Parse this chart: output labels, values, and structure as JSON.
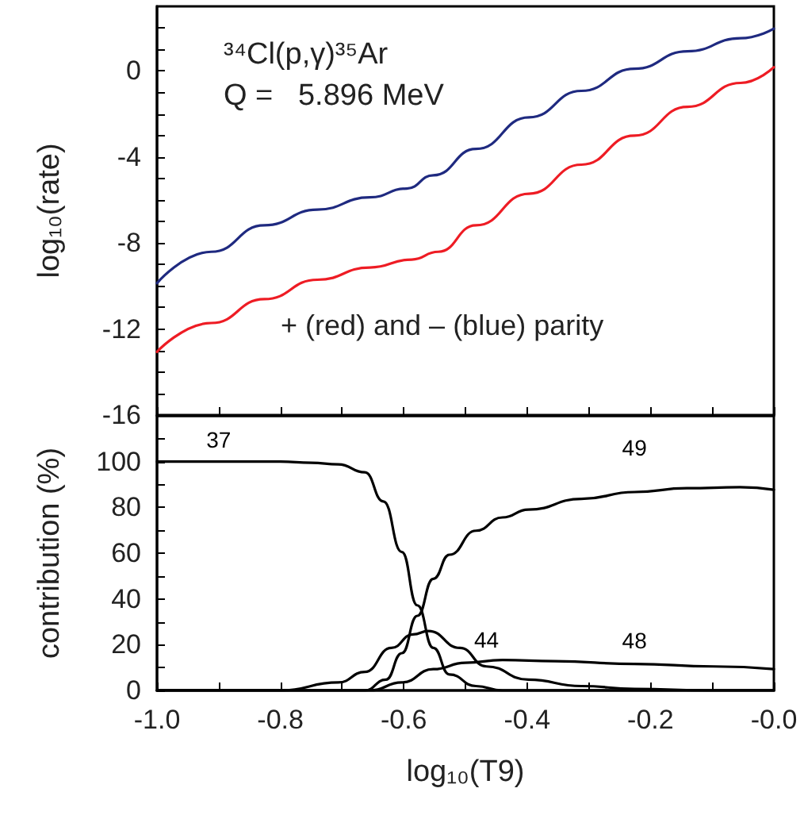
{
  "chart_data": [
    {
      "type": "line",
      "title": "³⁴Cl(p,γ)³⁵Ar",
      "subtitle": "Q =   5.896 MeV",
      "ylabel": "log₁₀(rate)",
      "annotations": [
        "+ (red) and – (blue) parity"
      ],
      "xlim": [
        -1,
        0
      ],
      "xticks": [
        {
          "value": -1,
          "label": null
        },
        {
          "value": -0.9,
          "label": null
        },
        {
          "value": -0.8,
          "label": null
        },
        {
          "value": -0.7,
          "label": null
        },
        {
          "value": -0.6,
          "label": null
        },
        {
          "value": -0.5,
          "label": null
        },
        {
          "value": -0.4,
          "label": null
        },
        {
          "value": -0.3,
          "label": null
        },
        {
          "value": -0.2,
          "label": null
        },
        {
          "value": -0.1,
          "label": null
        },
        {
          "value": 0,
          "label": null
        }
      ],
      "ylim": [
        -16,
        3
      ],
      "yticks": [
        -16,
        {
          "value": -15,
          "label": null
        },
        {
          "value": -14,
          "label": null
        },
        {
          "value": -13,
          "label": null
        },
        -12,
        {
          "value": -11,
          "label": null
        },
        {
          "value": -10,
          "label": null
        },
        {
          "value": -9,
          "label": null
        },
        -8,
        {
          "value": -7,
          "label": null
        },
        {
          "value": -6,
          "label": null
        },
        {
          "value": -5,
          "label": null
        },
        -4,
        {
          "value": -3,
          "label": null
        },
        {
          "value": -2,
          "label": null
        },
        {
          "value": -1,
          "label": null
        },
        0,
        {
          "value": 1,
          "label": null
        },
        {
          "value": 2,
          "label": null
        }
      ],
      "tick_labels": "y",
      "grid": false,
      "marker": "none",
      "line_style": "solid",
      "series": [
        {
          "color": "#1f2a80",
          "x": [
            -1,
            -0.912,
            -0.826,
            -0.74,
            -0.655,
            -0.595,
            -0.552,
            -0.483,
            -0.397,
            -0.312,
            -0.226,
            -0.14,
            -0.054,
            0
          ],
          "values": [
            -9.87,
            -8.41,
            -7.18,
            -6.45,
            -5.88,
            -5.47,
            -4.85,
            -3.63,
            -2.16,
            -0.93,
            0.1,
            0.91,
            1.52,
            1.96
          ]
        },
        {
          "color": "#ee1c24",
          "x": [
            -1,
            -0.912,
            -0.826,
            -0.74,
            -0.655,
            -0.587,
            -0.544,
            -0.483,
            -0.397,
            -0.312,
            -0.226,
            -0.14,
            -0.054,
            0
          ],
          "values": [
            -13.06,
            -11.72,
            -10.61,
            -9.71,
            -9.14,
            -8.77,
            -8.41,
            -7.18,
            -5.71,
            -4.36,
            -3.01,
            -1.67,
            -0.56,
            0.17
          ]
        }
      ]
    },
    {
      "type": "line",
      "xlabel": "log₁₀(T9)",
      "ylabel": "contribution (%)",
      "xlim": [
        -1,
        0
      ],
      "xticks": [
        {
          "value": -1,
          "label": "-1.0"
        },
        {
          "value": -0.9,
          "label": null
        },
        {
          "value": -0.8,
          "label": "-0.8"
        },
        {
          "value": -0.7,
          "label": null
        },
        {
          "value": -0.6,
          "label": "-0.6"
        },
        {
          "value": -0.5,
          "label": null
        },
        {
          "value": -0.4,
          "label": "-0.4"
        },
        {
          "value": -0.3,
          "label": null
        },
        {
          "value": -0.2,
          "label": "-0.2"
        },
        {
          "value": -0.1,
          "label": null
        },
        {
          "value": 0,
          "label": "-0.0"
        }
      ],
      "ylim": [
        0,
        120
      ],
      "yticks": [
        0,
        {
          "value": 10,
          "label": null
        },
        20,
        {
          "value": 30,
          "label": null
        },
        40,
        {
          "value": 50,
          "label": null
        },
        60,
        {
          "value": 70,
          "label": null
        },
        80,
        {
          "value": 90,
          "label": null
        },
        100,
        {
          "value": 110,
          "label": null
        }
      ],
      "grid": false,
      "marker": "none",
      "line_style": "solid",
      "series": [
        {
          "name": "37",
          "color": "#000000",
          "x": [
            -1,
            -0.9,
            -0.8,
            -0.75,
            -0.706,
            -0.663,
            -0.633,
            -0.603,
            -0.578,
            -0.552,
            -0.526,
            -0.483,
            -0.44,
            -0.3,
            0
          ],
          "values": [
            100,
            100,
            100,
            99.5,
            98.8,
            95.3,
            82.6,
            60.5,
            37.2,
            18.6,
            7,
            1.9,
            0,
            0,
            0
          ]
        },
        {
          "name": "49",
          "color": "#000000",
          "x": [
            -1,
            -0.8,
            -0.663,
            -0.629,
            -0.603,
            -0.578,
            -0.552,
            -0.526,
            -0.483,
            -0.44,
            -0.398,
            -0.312,
            -0.226,
            -0.141,
            -0.055,
            0
          ],
          "values": [
            0,
            0,
            0,
            4.7,
            16.3,
            32.6,
            48.8,
            59.3,
            69.8,
            75.6,
            79,
            83.7,
            86.7,
            88.4,
            88.8,
            87.7
          ]
        },
        {
          "name": "44",
          "color": "#000000",
          "x": [
            -1,
            -0.8,
            -0.706,
            -0.663,
            -0.62,
            -0.585,
            -0.56,
            -0.509,
            -0.466,
            -0.398,
            -0.312,
            -0.226,
            -0.1,
            0
          ],
          "values": [
            0,
            0,
            3.5,
            8.1,
            18.6,
            24.5,
            26,
            18.6,
            10.5,
            4.7,
            1.9,
            0.7,
            0,
            0
          ]
        },
        {
          "name": "48",
          "color": "#000000",
          "x": [
            -1,
            -0.8,
            -0.655,
            -0.603,
            -0.552,
            -0.5,
            -0.44,
            -0.355,
            -0.226,
            -0.098,
            0
          ],
          "values": [
            0,
            0,
            0,
            3.5,
            9.3,
            12.1,
            13.3,
            12.8,
            11.6,
            10.5,
            9.3
          ]
        }
      ]
    }
  ]
}
